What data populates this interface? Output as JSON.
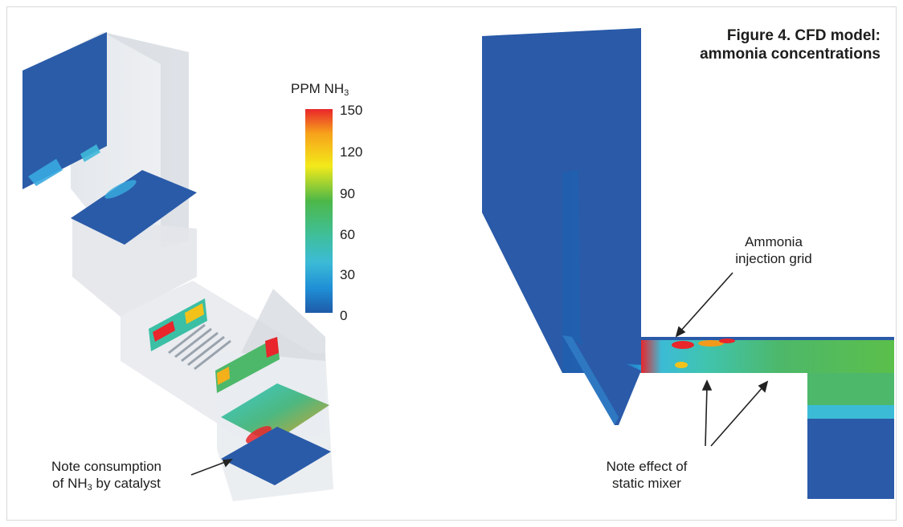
{
  "figure": {
    "title_line1": "Figure 4. CFD model:",
    "title_line2": "ammonia concentrations"
  },
  "legend": {
    "title_prefix": "PPM NH",
    "title_subscript": "3",
    "ticks": [
      "150",
      "120",
      "90",
      "60",
      "30",
      "0"
    ],
    "colors": [
      "#e8262b",
      "#f7a21b",
      "#f3ea1a",
      "#4db848",
      "#3cbbd6",
      "#1f8fd6",
      "#1e5aa8"
    ]
  },
  "annotations": {
    "left": {
      "line1": "Note consumption",
      "line2_prefix": "of NH",
      "line2_sub": "3",
      "line2_suffix": " by catalyst"
    },
    "injection": {
      "line1": "Ammonia",
      "line2": "injection grid"
    },
    "mixer": {
      "line1": "Note effect of",
      "line2": "static mixer"
    }
  }
}
